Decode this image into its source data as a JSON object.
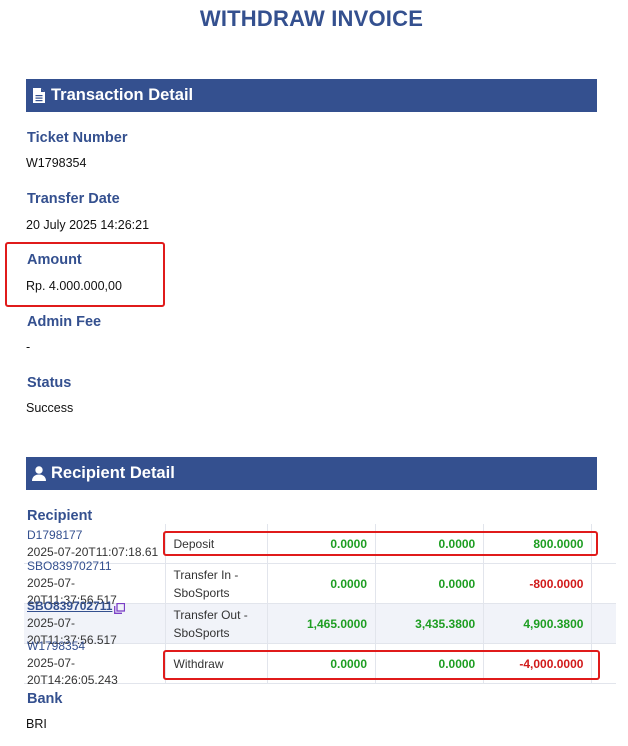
{
  "page_title": "WITHDRAW INVOICE",
  "transaction": {
    "header": "Transaction Detail",
    "fields": [
      {
        "label": "Ticket Number",
        "value": "W1798354"
      },
      {
        "label": "Transfer Date",
        "value": "20 July 2025 14:26:21"
      },
      {
        "label": "Amount",
        "value": "Rp. 4.000.000,00"
      },
      {
        "label": "Admin Fee",
        "value": "-"
      },
      {
        "label": "Status",
        "value": "Success"
      }
    ]
  },
  "recipient": {
    "header": "Recipient Detail",
    "label": "Recipient",
    "rows": [
      {
        "id": "D1798177",
        "timestamp": "2025-07-20T11:07:18.61",
        "type": "Deposit",
        "col1": "0.0000",
        "col2": "0.0000",
        "col3": "800.0000"
      },
      {
        "id": "SBO839702711",
        "timestamp": "2025-07-20T11:37:56.517",
        "type": "Transfer In - SboSports",
        "col1": "0.0000",
        "col2": "0.0000",
        "col3": "-800.0000"
      },
      {
        "id": "SBO839702711",
        "timestamp": "2025-07-20T11:37:56.517",
        "type": "Transfer Out - SboSports",
        "col1": "1,465.0000",
        "col2": "3,435.3800",
        "col3": "4,900.3800"
      },
      {
        "id": "W1798354",
        "timestamp": "2025-07-20T14:26:05.243",
        "type": "Withdraw",
        "col1": "0.0000",
        "col2": "0.0000",
        "col3": "-4,000.0000"
      }
    ]
  },
  "bank": {
    "label": "Bank",
    "value": "BRI"
  },
  "icons": {
    "transaction": "file-icon",
    "recipient": "user-icon",
    "copy": "copy-icon"
  },
  "colors": {
    "primary": "#34508f",
    "positive": "#1e9e22",
    "negative": "#d11a1a",
    "highlight": "#e01b1b"
  }
}
